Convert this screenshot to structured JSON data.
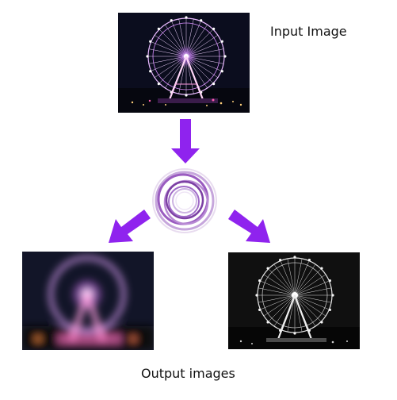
{
  "labels": {
    "input": "Input Image",
    "output": "Output images"
  },
  "colors": {
    "arrow": "#8f23ee",
    "filter_ring": "#9a5cc0",
    "night_sky": "#0b0d1e",
    "wheel_light": "#e2a0ff"
  },
  "icons": {
    "filter": "swirl-filter-icon",
    "arrow_down": "arrow-down-icon",
    "arrow_left": "arrow-down-left-icon",
    "arrow_right": "arrow-down-right-icon"
  }
}
